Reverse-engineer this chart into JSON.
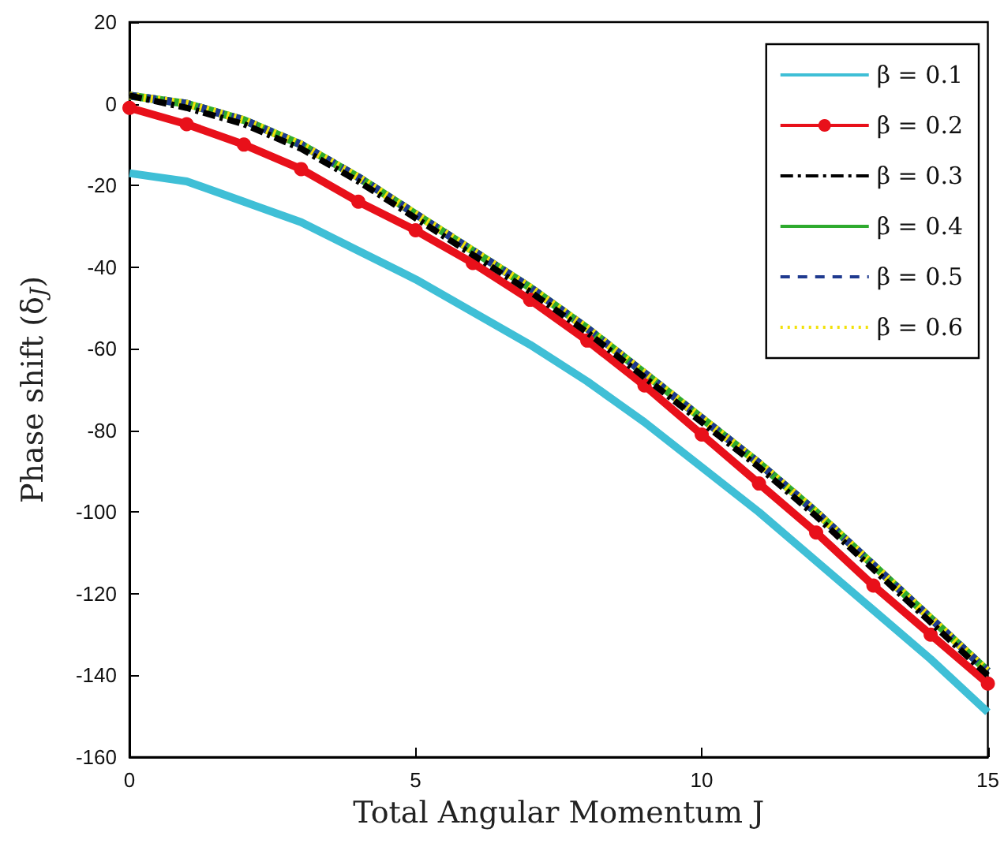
{
  "chart_data": {
    "type": "line",
    "xlabel": "Total Angular Momentum J",
    "ylabel": "Phase shift (δ$_{J}$)",
    "x": [
      0,
      1,
      2,
      3,
      4,
      5,
      6,
      7,
      8,
      9,
      10,
      11,
      12,
      13,
      14,
      15
    ],
    "xlim": [
      0,
      15
    ],
    "xticks": [
      0,
      5,
      10,
      15
    ],
    "ylim": [
      -160,
      20
    ],
    "yticks": [
      -160,
      -140,
      -120,
      -100,
      -80,
      -60,
      -40,
      -20,
      0,
      20
    ],
    "grid": false,
    "legend": "top right",
    "series": [
      {
        "name": "β = 0.1",
        "color": "#3fbfd6",
        "line_style": "solid",
        "marker": "none",
        "values": [
          -17,
          -19,
          -24,
          -29,
          -36,
          -43,
          -51,
          -59,
          -68,
          -78,
          -89,
          -100,
          -112,
          -124,
          -136,
          -149
        ]
      },
      {
        "name": "β = 0.2",
        "color": "#e8101a",
        "line_style": "solid",
        "marker": "circle",
        "values": [
          -1,
          -5,
          -10,
          -16,
          -24,
          -31,
          -39,
          -48,
          -58,
          -69,
          -81,
          -93,
          -105,
          -118,
          -130,
          -142
        ]
      },
      {
        "name": "β = 0.3",
        "color": "#000000",
        "line_style": "dashdot",
        "marker": "none",
        "values": [
          2,
          -1,
          -5,
          -11,
          -19,
          -28,
          -37,
          -46,
          -56,
          -67,
          -78,
          -89,
          -101,
          -114,
          -127,
          -140
        ]
      },
      {
        "name": "β = 0.4",
        "color": "#2eaa2e",
        "line_style": "solid",
        "marker": "none",
        "values": [
          2,
          0,
          -4,
          -10,
          -18,
          -27,
          -36,
          -45,
          -55,
          -66,
          -77,
          -88,
          -100,
          -113,
          -126,
          -139
        ]
      },
      {
        "name": "β = 0.5",
        "color": "#1f3a8f",
        "line_style": "dashed",
        "marker": "none",
        "values": [
          2,
          0,
          -4,
          -10,
          -18,
          -27,
          -36,
          -45,
          -55,
          -66,
          -77,
          -88,
          -100,
          -113,
          -126,
          -139
        ]
      },
      {
        "name": "β = 0.6",
        "color": "#f2e10a",
        "line_style": "dotted",
        "marker": "none",
        "values": [
          2,
          0,
          -4,
          -10,
          -18,
          -27,
          -36,
          -45,
          -55,
          -66,
          -77,
          -88,
          -100,
          -113,
          -126,
          -139
        ]
      }
    ]
  }
}
